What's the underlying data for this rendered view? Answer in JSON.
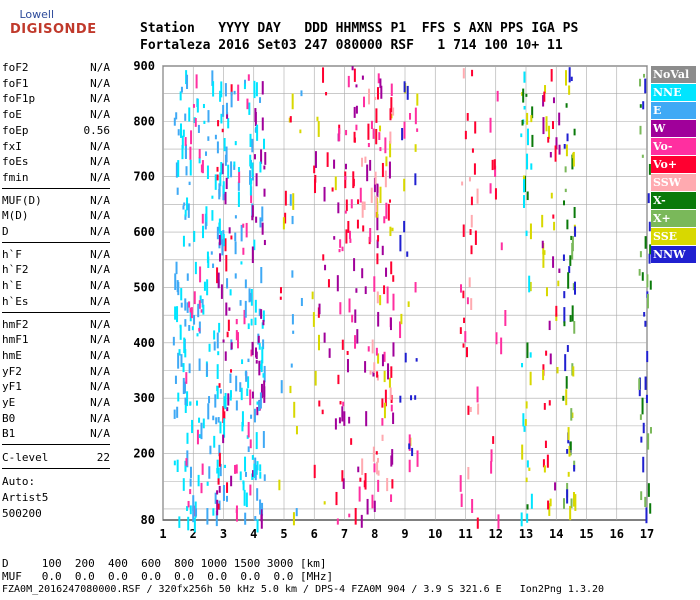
{
  "logo": {
    "top": "Lowell",
    "main": "DIGISONDE"
  },
  "header": {
    "line1": "Station   YYYY DAY   DDD HHMMSS P1  FFS S AXN PPS IGA PS",
    "line2": "Fortaleza 2016 Set03 247 080000 RSF   1 714 100 10+ 11"
  },
  "params": {
    "group1": [
      {
        "label": "foF2",
        "value": "N/A"
      },
      {
        "label": "foF1",
        "value": "N/A"
      },
      {
        "label": "foF1p",
        "value": "N/A"
      },
      {
        "label": "foE",
        "value": "N/A"
      },
      {
        "label": "foEp",
        "value": "0.56"
      },
      {
        "label": "fxI",
        "value": "N/A"
      },
      {
        "label": "foEs",
        "value": "N/A"
      },
      {
        "label": "fmin",
        "value": "N/A"
      }
    ],
    "group2": [
      {
        "label": "MUF(D)",
        "value": "N/A"
      },
      {
        "label": "M(D)",
        "value": "N/A"
      },
      {
        "label": "D",
        "value": "N/A"
      }
    ],
    "group3": [
      {
        "label": "h`F",
        "value": "N/A"
      },
      {
        "label": "h`F2",
        "value": "N/A"
      },
      {
        "label": "h`E",
        "value": "N/A"
      },
      {
        "label": "h`Es",
        "value": "N/A"
      }
    ],
    "group4": [
      {
        "label": "hmF2",
        "value": "N/A"
      },
      {
        "label": "hmF1",
        "value": "N/A"
      },
      {
        "label": "hmE",
        "value": "N/A"
      },
      {
        "label": "yF2",
        "value": "N/A"
      },
      {
        "label": "yF1",
        "value": "N/A"
      },
      {
        "label": "yE",
        "value": "N/A"
      },
      {
        "label": "B0",
        "value": "N/A"
      },
      {
        "label": "B1",
        "value": "N/A"
      }
    ],
    "clevel": {
      "label": "C-level",
      "value": "22"
    },
    "auto": [
      "Auto:",
      "Artist5",
      "500200"
    ]
  },
  "axes": {
    "y_ticks": [
      "900",
      "800",
      "700",
      "600",
      "500",
      "400",
      "300",
      "200",
      "80"
    ],
    "x_ticks": [
      "1",
      "2",
      "3",
      "4",
      "5",
      "6",
      "7",
      "8",
      "9",
      "10",
      "11",
      "12",
      "13",
      "14",
      "15",
      "16",
      "17"
    ]
  },
  "legend": [
    {
      "label": "NoVal",
      "color": "#8c8c8c"
    },
    {
      "label": "NNE",
      "color": "#00e5ff"
    },
    {
      "label": "E",
      "color": "#3fa9f5"
    },
    {
      "label": "W",
      "color": "#a0009a"
    },
    {
      "label": "Vo-",
      "color": "#ff2fa0"
    },
    {
      "label": "Vo+",
      "color": "#ff0030"
    },
    {
      "label": "SSW",
      "color": "#ffaab0"
    },
    {
      "label": "X-",
      "color": "#0a7a0a"
    },
    {
      "label": "X+",
      "color": "#7ab85a"
    },
    {
      "label": "SSE",
      "color": "#d8d800"
    },
    {
      "label": "NNW",
      "color": "#2020d0"
    }
  ],
  "footer": {
    "line1": "D     100  200  400  600  800 1000 1500 3000 [km]",
    "line2": "MUF   0.0  0.0  0.0  0.0  0.0  0.0  0.0  0.0 [MHz]",
    "filename": "FZA0M_2016247080000.RSF / 320fx256h 50 kHz 5.0 km / DPS-4 FZA0M 904 / 3.9 S 321.6 E   Ion2Png 1.3.20"
  }
}
